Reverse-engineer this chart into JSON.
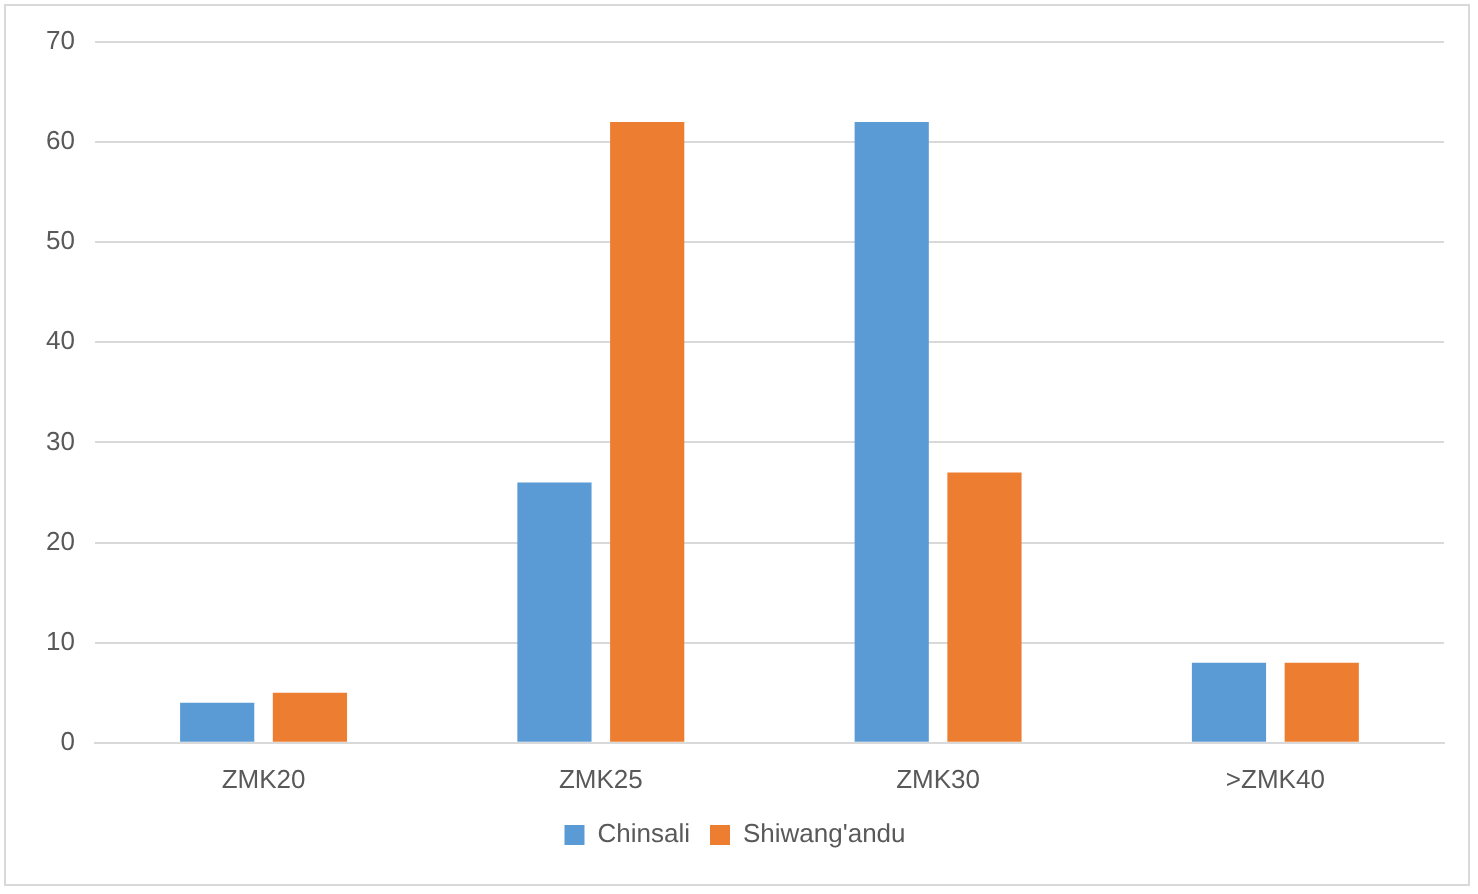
{
  "chart_data": {
    "type": "bar",
    "categories": [
      "ZMK20",
      "ZMK25",
      "ZMK30",
      ">ZMK40"
    ],
    "series": [
      {
        "name": "Chinsali",
        "color": "#5b9bd5",
        "values": [
          4,
          26,
          62,
          8
        ]
      },
      {
        "name": "Shiwang'andu",
        "color": "#ed7d31",
        "values": [
          5,
          62,
          27,
          8
        ]
      }
    ],
    "ylim": [
      0,
      70
    ],
    "yticks": [
      0,
      10,
      20,
      30,
      40,
      50,
      60,
      70
    ],
    "grid": "y",
    "legend": "bottom"
  }
}
